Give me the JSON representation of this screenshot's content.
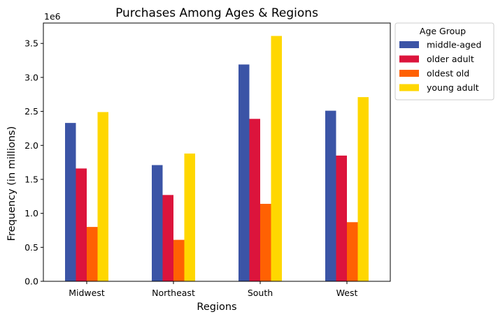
{
  "chart_data": {
    "type": "bar",
    "title": "Purchases Among Ages & Regions",
    "xlabel": "Regions",
    "ylabel": "Frequency (in millions)",
    "offset_text": "1e6",
    "categories": [
      "Midwest",
      "Northeast",
      "South",
      "West"
    ],
    "ylim": [
      0,
      3800000
    ],
    "yticks": [
      {
        "value": 0,
        "label": "0.0"
      },
      {
        "value": 500000,
        "label": "0.5"
      },
      {
        "value": 1000000,
        "label": "1.0"
      },
      {
        "value": 1500000,
        "label": "1.5"
      },
      {
        "value": 2000000,
        "label": "2.0"
      },
      {
        "value": 2500000,
        "label": "2.5"
      },
      {
        "value": 3000000,
        "label": "3.0"
      },
      {
        "value": 3500000,
        "label": "3.5"
      }
    ],
    "grid": false,
    "legend": {
      "title": "Age Group",
      "placement": "outside-top-right"
    },
    "series": [
      {
        "name": "middle-aged",
        "color": "#3b54a6",
        "values": [
          2330000,
          1710000,
          3190000,
          2510000
        ]
      },
      {
        "name": "older adult",
        "color": "#dc143c",
        "values": [
          1660000,
          1270000,
          2390000,
          1850000
        ]
      },
      {
        "name": "oldest old",
        "color": "#ff6103",
        "values": [
          800000,
          610000,
          1140000,
          870000
        ]
      },
      {
        "name": "young adult",
        "color": "#ffd700",
        "values": [
          2490000,
          1880000,
          3610000,
          2710000
        ]
      }
    ]
  }
}
